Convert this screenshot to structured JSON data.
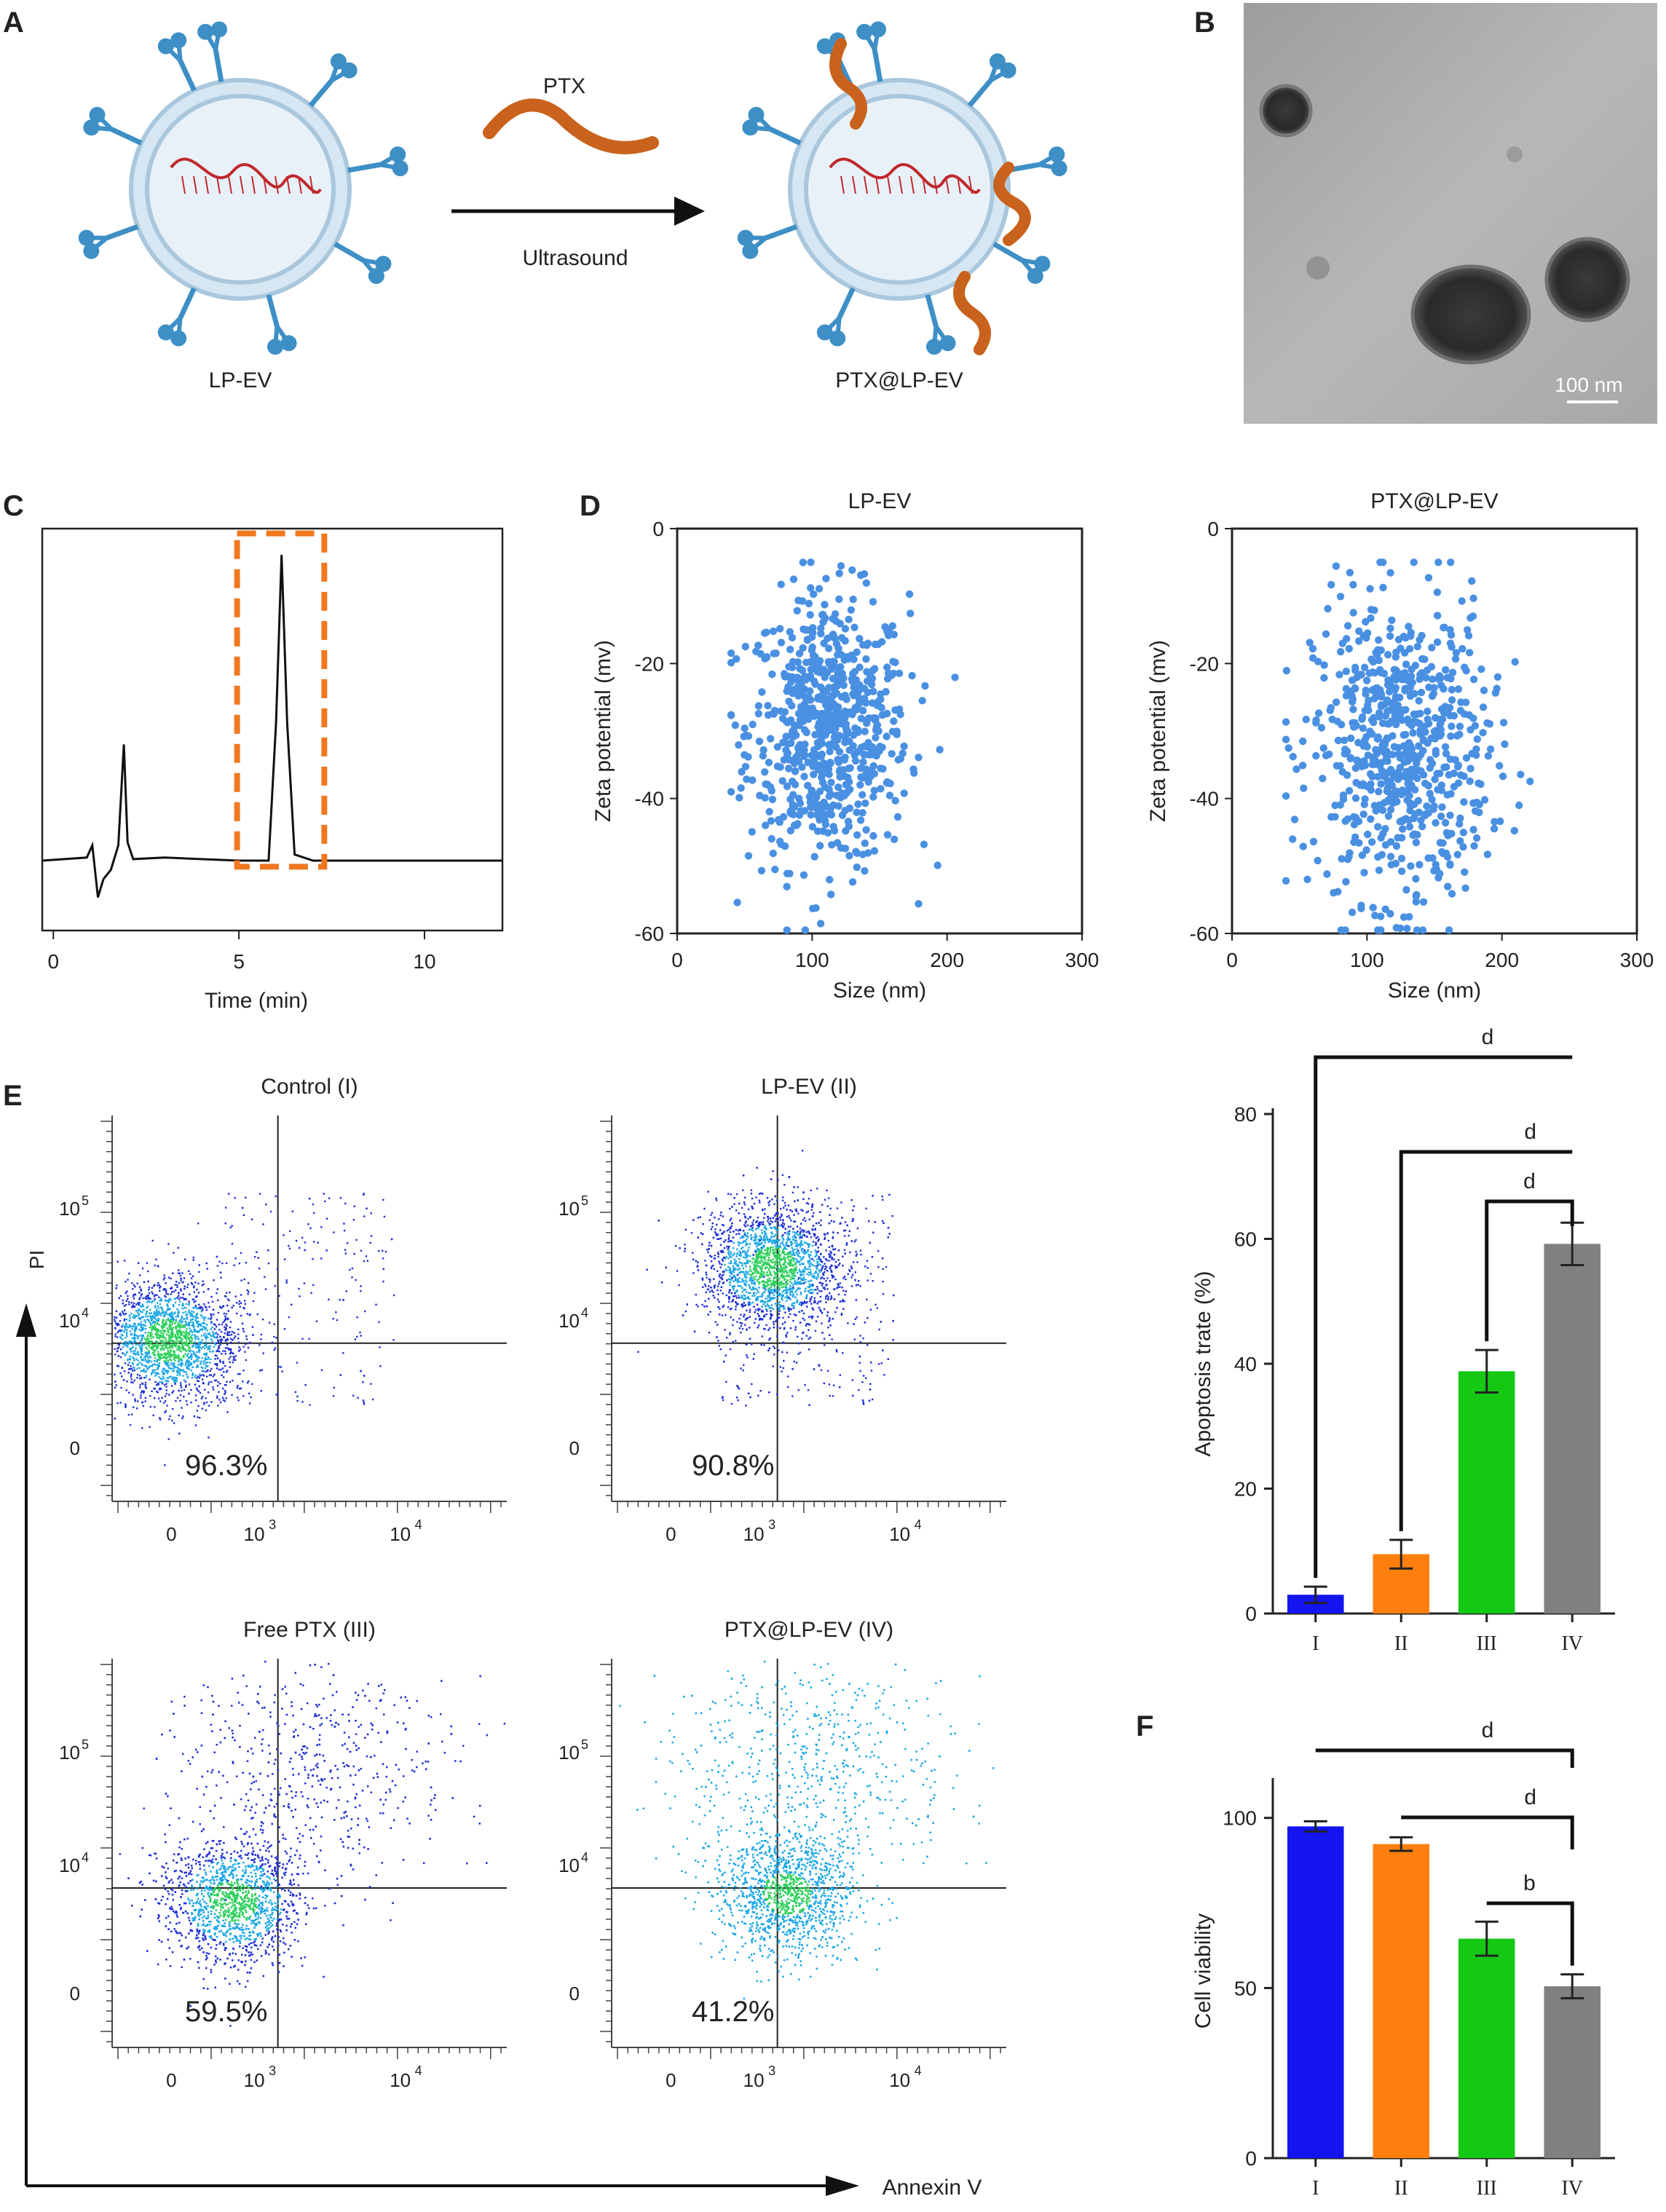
{
  "panels": {
    "A": {
      "letter": "A",
      "left_label": "LP-EV",
      "right_label": "PTX@LP-EV",
      "arrow_top": "PTX",
      "arrow_bottom": "Ultrasound",
      "colors": {
        "membrane": "#b9d6ea",
        "ligand": "#3d8fc6",
        "rna": "#c0282c",
        "ptx": "#c8621c"
      }
    },
    "B": {
      "letter": "B",
      "scale_label": "100 nm"
    },
    "C": {
      "letter": "C",
      "x_label": "Time (min)",
      "x_ticks": [
        "0",
        "5",
        "10"
      ],
      "highlight_color": "#f07820"
    },
    "D": {
      "letter": "D",
      "dot_color": "#4a90e2"
    },
    "E": {
      "letter": "E",
      "y_axis_title": "PI",
      "x_axis_title": "Annexin V",
      "colors": {
        "dense": "#2cd05a",
        "mid": "#1aa7e6",
        "sparse": "#1f2fd6"
      }
    },
    "F": {
      "letter": "F"
    }
  },
  "chart_data": [
    {
      "type": "line",
      "panel": "C",
      "xlabel": "Time (min)",
      "x_ticks": [
        0,
        5,
        10
      ],
      "xlim": [
        -0.3,
        12.1
      ],
      "series": [
        {
          "values": [
            [
              -0.3,
              0
            ],
            [
              0.9,
              0.01
            ],
            [
              1.05,
              0.05
            ],
            [
              1.2,
              -0.12
            ],
            [
              1.35,
              -0.06
            ],
            [
              1.55,
              -0.03
            ],
            [
              1.75,
              0.05
            ],
            [
              1.9,
              0.38
            ],
            [
              2.0,
              0.06
            ],
            [
              2.15,
              0.005
            ],
            [
              3.0,
              0.01
            ],
            [
              5.0,
              0.0
            ],
            [
              5.8,
              0.0
            ],
            [
              6.0,
              0.45
            ],
            [
              6.15,
              1.0
            ],
            [
              6.3,
              0.45
            ],
            [
              6.5,
              0.02
            ],
            [
              7.0,
              0.0
            ],
            [
              12.1,
              0.0
            ]
          ]
        }
      ],
      "highlight_range": [
        4.95,
        7.3
      ]
    },
    {
      "type": "scatter",
      "panel": "D",
      "title": "LP-EV",
      "xlabel": "Size (nm)",
      "ylabel": "Zeta potential (mv)",
      "xlim": [
        0,
        300
      ],
      "ylim": [
        -60,
        0
      ],
      "x_ticks": [
        0,
        100,
        200,
        300
      ],
      "y_ticks": [
        0,
        -20,
        -40,
        -60
      ],
      "series": [
        {
          "points_note": "approx. 700 points",
          "x_center": 112,
          "x_sd": 35,
          "y_center": -30,
          "y_sd": 10
        }
      ]
    },
    {
      "type": "scatter",
      "panel": "D",
      "title": "PTX@LP-EV",
      "xlabel": "Size (nm)",
      "ylabel": "Zeta potential (mv)",
      "xlim": [
        0,
        300
      ],
      "ylim": [
        -60,
        0
      ],
      "x_ticks": [
        0,
        100,
        200,
        300
      ],
      "y_ticks": [
        0,
        -20,
        -40,
        -60
      ],
      "series": [
        {
          "points_note": "approx. 700 points",
          "x_center": 125,
          "x_sd": 38,
          "y_center": -33,
          "y_sd": 11
        }
      ]
    },
    {
      "type": "scatter",
      "panel": "E",
      "subtype": "flow-cytometry",
      "plots": [
        {
          "title": "Control (I)",
          "viable_percent": "96.3%"
        },
        {
          "title": "LP-EV (II)",
          "viable_percent": "90.8%"
        },
        {
          "title": "Free PTX (III)",
          "viable_percent": "59.5%"
        },
        {
          "title": "PTX@LP-EV (IV)",
          "viable_percent": "41.2%"
        }
      ],
      "x_ticks": [
        "0",
        "10^3",
        "10^4"
      ],
      "y_ticks": [
        "0",
        "10^4",
        "10^5"
      ]
    },
    {
      "type": "bar",
      "panel": "E",
      "ylabel": "Apoptosis trate (%)",
      "categories": [
        "I",
        "II",
        "III",
        "IV"
      ],
      "values": [
        3,
        9.5,
        38.8,
        59.2
      ],
      "errors": [
        1.3,
        2.3,
        3.4,
        3.4
      ],
      "colors": [
        "#1414f0",
        "#ff7f0e",
        "#14c814",
        "#808080"
      ],
      "ylim": [
        0,
        80
      ],
      "y_ticks": [
        0,
        20,
        40,
        60,
        80
      ],
      "significance": [
        {
          "from": "I",
          "to": "IV",
          "label": "d"
        },
        {
          "from": "II",
          "to": "IV",
          "label": "d"
        },
        {
          "from": "III",
          "to": "IV",
          "label": "d"
        }
      ]
    },
    {
      "type": "bar",
      "panel": "F",
      "ylabel": "Cell viability",
      "categories": [
        "I",
        "II",
        "III",
        "IV"
      ],
      "values": [
        97.5,
        92.3,
        64.5,
        50.5
      ],
      "errors": [
        1.5,
        2.0,
        5.0,
        3.5
      ],
      "colors": [
        "#1414f0",
        "#ff7f0e",
        "#14c814",
        "#808080"
      ],
      "ylim": [
        0,
        110
      ],
      "y_ticks": [
        0,
        50,
        100
      ],
      "significance": [
        {
          "from": "I",
          "to": "IV",
          "label": "d"
        },
        {
          "from": "II",
          "to": "IV",
          "label": "d"
        },
        {
          "from": "III",
          "to": "IV",
          "label": "b"
        }
      ]
    }
  ]
}
